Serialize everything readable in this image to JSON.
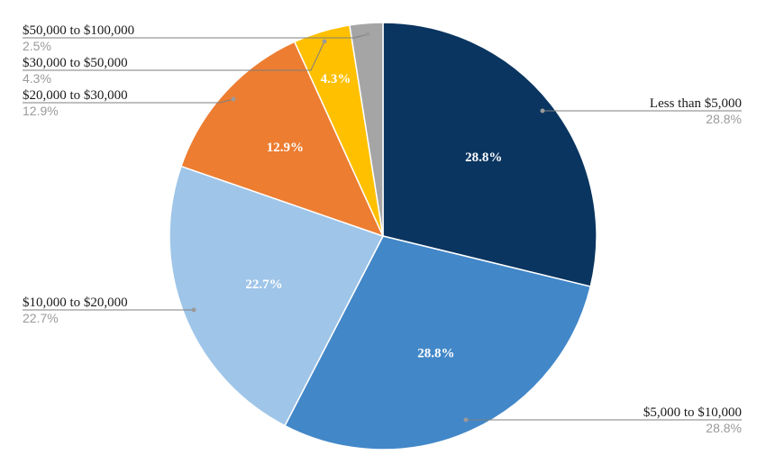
{
  "chart_data": {
    "type": "pie",
    "title": "",
    "slices": [
      {
        "label": "Less than $5,000",
        "value": 28.8,
        "display": "28.8%",
        "color": "#0a3560"
      },
      {
        "label": "$5,000 to $10,000",
        "value": 28.8,
        "display": "28.8%",
        "color": "#4287c8"
      },
      {
        "label": "$10,000 to $20,000",
        "value": 22.7,
        "display": "22.7%",
        "color": "#9fc5e8"
      },
      {
        "label": "$20,000 to $30,000",
        "value": 12.9,
        "display": "12.9%",
        "color": "#ed7d31"
      },
      {
        "label": "$30,000 to $50,000",
        "value": 4.3,
        "display": "4.3%",
        "color": "#ffc000"
      },
      {
        "label": "$50,000 to $100,000",
        "value": 2.5,
        "display": "2.5%",
        "color": "#a5a5a5"
      }
    ]
  }
}
